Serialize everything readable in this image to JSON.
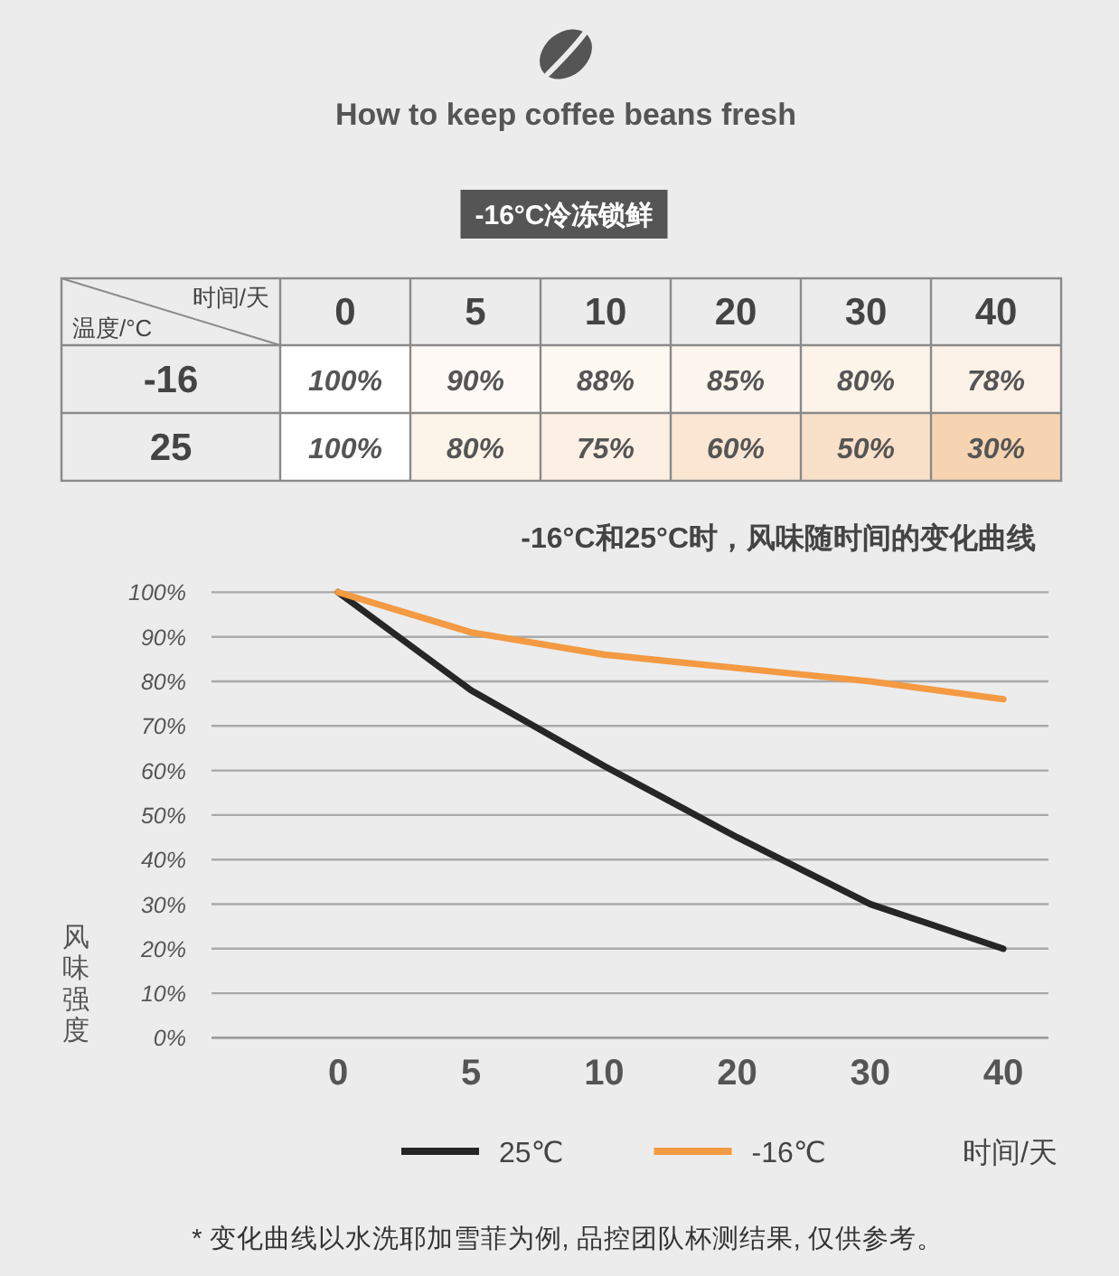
{
  "chart_data": [
    {
      "type": "heatmap",
      "title": "How to keep coffee beans fresh",
      "subtitle": "-16°C冷冻锁鲜",
      "xlabel": "时间/天",
      "ylabel": "温度/°C",
      "categories": [
        "0",
        "5",
        "10",
        "20",
        "30",
        "40"
      ],
      "y_categories": [
        "-16",
        "25"
      ],
      "cells": [
        [
          100,
          90,
          88,
          85,
          80,
          78
        ],
        [
          100,
          80,
          75,
          60,
          50,
          30
        ]
      ],
      "cell_labels": [
        [
          "100%",
          "90%",
          "88%",
          "85%",
          "80%",
          "78%"
        ],
        [
          "100%",
          "80%",
          "75%",
          "60%",
          "50%",
          "30%"
        ]
      ]
    },
    {
      "type": "line",
      "title": "-16°C和25°C时，风味随时间的变化曲线",
      "xlabel": "时间/天",
      "ylabel": "风味强度",
      "categories": [
        "0",
        "5",
        "10",
        "20",
        "30",
        "40"
      ],
      "series": [
        {
          "name": "25℃",
          "color": "#262626",
          "values": [
            100,
            78,
            61,
            45,
            30,
            20
          ]
        },
        {
          "name": "-16℃",
          "color": "#f39a43",
          "values": [
            100,
            91,
            86,
            83,
            80,
            76
          ]
        }
      ],
      "ylim": [
        0,
        100
      ],
      "yticks": [
        {
          "value": 0,
          "label": "0%"
        },
        {
          "value": 10,
          "label": "10%"
        },
        {
          "value": 20,
          "label": "20%"
        },
        {
          "value": 30,
          "label": "30%"
        },
        {
          "value": 40,
          "label": "40%"
        },
        {
          "value": 50,
          "label": "50%"
        },
        {
          "value": 60,
          "label": "60%"
        },
        {
          "value": 70,
          "label": "70%"
        },
        {
          "value": 80,
          "label": "80%"
        },
        {
          "value": 90,
          "label": "90%"
        },
        {
          "value": 100,
          "label": "100%"
        }
      ],
      "grid": "y",
      "legend": "bottom",
      "line_style": "solid",
      "annotations": [
        "* 变化曲线以水洗耶加雪菲为例, 品控团队杯测结果, 仅供参考。"
      ]
    }
  ]
}
